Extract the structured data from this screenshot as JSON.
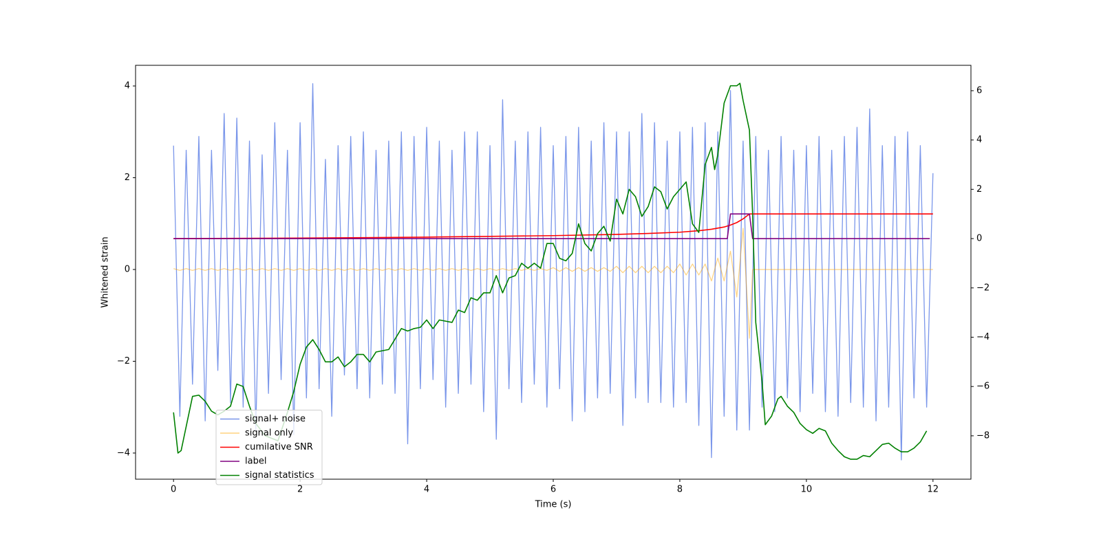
{
  "chart_data": {
    "type": "line",
    "xlabel": "Time (s)",
    "ylabel": "Whitened strain",
    "xlim": [
      -0.6,
      12.6
    ],
    "xticks": [
      0,
      2,
      4,
      6,
      8,
      10,
      12
    ],
    "ylim": [
      -4.57,
      4.45
    ],
    "yticks": [
      {
        "value": -4,
        "label": "−4"
      },
      {
        "value": -2,
        "label": "−2"
      },
      0,
      2,
      4
    ],
    "y2lim": [
      -9.76,
      7.03
    ],
    "y2ticks": [
      {
        "value": -8,
        "label": "−8"
      },
      {
        "value": -6,
        "label": "−6"
      },
      {
        "value": -4,
        "label": "−4"
      },
      {
        "value": -2,
        "label": "−2"
      },
      0,
      2,
      4,
      6
    ],
    "legend_loc": "lower left",
    "series": [
      {
        "name": "signal+ noise",
        "color": "#4169e1",
        "x": [
          0,
          0.1,
          0.2,
          0.3,
          0.4,
          0.5,
          0.6,
          0.7,
          0.8,
          0.9,
          1,
          1.1,
          1.2,
          1.3,
          1.4,
          1.5,
          1.6,
          1.7,
          1.8,
          1.9,
          2,
          2.1,
          2.2,
          2.3,
          2.4,
          2.5,
          2.6,
          2.7,
          2.8,
          2.9,
          3,
          3.1,
          3.2,
          3.3,
          3.4,
          3.5,
          3.6,
          3.7,
          3.8,
          3.9,
          4,
          4.1,
          4.2,
          4.3,
          4.4,
          4.5,
          4.6,
          4.7,
          4.8,
          4.9,
          5,
          5.1,
          5.2,
          5.3,
          5.4,
          5.5,
          5.6,
          5.7,
          5.8,
          5.9,
          6,
          6.1,
          6.2,
          6.3,
          6.4,
          6.5,
          6.6,
          6.7,
          6.8,
          6.9,
          7,
          7.1,
          7.2,
          7.3,
          7.4,
          7.5,
          7.6,
          7.7,
          7.8,
          7.9,
          8,
          8.1,
          8.2,
          8.3,
          8.4,
          8.5,
          8.6,
          8.7,
          8.8,
          8.9,
          9,
          9.1,
          9.2,
          9.3,
          9.4,
          9.5,
          9.6,
          9.7,
          9.8,
          9.9,
          10,
          10.1,
          10.2,
          10.3,
          10.4,
          10.5,
          10.6,
          10.7,
          10.8,
          10.9,
          11,
          11.1,
          11.2,
          11.3,
          11.4,
          11.5,
          11.6,
          11.7,
          11.8,
          11.9,
          12
        ],
        "values": [
          2.7,
          -3.2,
          2.6,
          -2.5,
          2.9,
          -3.3,
          2.6,
          -2.2,
          3.4,
          -2.9,
          3.3,
          -3.0,
          2.8,
          -3.5,
          2.5,
          -2.7,
          3.2,
          -2.4,
          2.6,
          -3.6,
          3.2,
          -2.8,
          4.05,
          -2.6,
          2.4,
          -3.2,
          2.7,
          -2.3,
          2.9,
          -2.6,
          3.0,
          -2.8,
          2.6,
          -2.5,
          2.8,
          -2.7,
          3.0,
          -3.8,
          2.9,
          -2.6,
          3.1,
          -2.4,
          2.8,
          -3.0,
          2.6,
          -2.7,
          3.0,
          -2.5,
          3.0,
          -3.1,
          2.7,
          -3.7,
          3.7,
          -2.6,
          2.8,
          -2.9,
          3.0,
          -2.5,
          3.1,
          -3.0,
          2.7,
          -2.6,
          2.9,
          -3.3,
          3.1,
          -3.1,
          2.8,
          -2.8,
          3.2,
          -2.7,
          3.0,
          -3.4,
          3.0,
          -2.8,
          3.4,
          -2.9,
          3.2,
          -2.9,
          2.8,
          -3.0,
          3.0,
          -2.9,
          3.1,
          -3.4,
          3.2,
          -4.1,
          3.0,
          -3.2,
          3.9,
          -3.5,
          2.8,
          -3.5,
          2.9,
          -3.0,
          2.6,
          -3.1,
          2.9,
          -2.8,
          2.6,
          -3.1,
          2.7,
          -2.7,
          2.9,
          -3.1,
          2.6,
          -3.2,
          2.9,
          -2.9,
          3.1,
          -3.0,
          3.5,
          -3.3,
          2.7,
          -3.0,
          2.9,
          -4.15,
          3.0,
          -2.8,
          2.7,
          -3.0,
          2.1
        ]
      },
      {
        "name": "signal only",
        "color": "#ffa500",
        "x": [
          0,
          0.1,
          0.2,
          0.3,
          0.4,
          0.5,
          0.6,
          0.7,
          0.8,
          0.9,
          1,
          1.1,
          1.2,
          1.3,
          1.4,
          1.5,
          1.6,
          1.7,
          1.8,
          1.9,
          2,
          2.1,
          2.2,
          2.3,
          2.4,
          2.5,
          2.6,
          2.7,
          2.8,
          2.9,
          3,
          3.1,
          3.2,
          3.3,
          3.4,
          3.5,
          3.6,
          3.7,
          3.8,
          3.9,
          4,
          4.1,
          4.2,
          4.3,
          4.4,
          4.5,
          4.6,
          4.7,
          4.8,
          4.9,
          5,
          5.1,
          5.2,
          5.3,
          5.4,
          5.5,
          5.6,
          5.7,
          5.8,
          5.9,
          6,
          6.1,
          6.2,
          6.3,
          6.4,
          6.5,
          6.6,
          6.7,
          6.8,
          6.9,
          7,
          7.1,
          7.2,
          7.3,
          7.4,
          7.5,
          7.6,
          7.7,
          7.8,
          7.9,
          8,
          8.1,
          8.2,
          8.3,
          8.4,
          8.5,
          8.6,
          8.7,
          8.8,
          8.9,
          9,
          9.1,
          9.15,
          12
        ],
        "values": [
          0.02,
          -0.02,
          0.02,
          -0.02,
          0.02,
          -0.02,
          0.02,
          -0.02,
          0.02,
          -0.02,
          0.02,
          -0.02,
          0.02,
          -0.02,
          0.02,
          -0.02,
          0.02,
          -0.02,
          0.02,
          -0.02,
          0.02,
          -0.02,
          0.02,
          -0.02,
          0.02,
          -0.02,
          0.02,
          -0.02,
          0.02,
          -0.02,
          0.02,
          -0.02,
          0.02,
          -0.02,
          0.02,
          -0.02,
          0.02,
          -0.02,
          0.02,
          -0.02,
          0.02,
          -0.02,
          0.02,
          -0.02,
          0.02,
          -0.02,
          0.02,
          -0.02,
          0.02,
          -0.02,
          0.02,
          -0.02,
          0.02,
          -0.02,
          0.02,
          -0.02,
          0.02,
          -0.02,
          0.02,
          -0.02,
          0.04,
          -0.04,
          0.04,
          -0.04,
          0.04,
          -0.04,
          0.04,
          -0.04,
          0.04,
          -0.04,
          0.07,
          -0.07,
          0.07,
          -0.07,
          0.07,
          -0.07,
          0.07,
          -0.07,
          0.07,
          -0.07,
          0.12,
          -0.12,
          0.12,
          -0.12,
          0.12,
          -0.25,
          0.25,
          -0.25,
          0.4,
          -0.6,
          0.9,
          -1.5,
          0,
          0
        ]
      },
      {
        "name": "cumilative SNR",
        "color": "#ff0000",
        "axis": "y2",
        "x": [
          0,
          1,
          2,
          3,
          4,
          5,
          6,
          7,
          7.5,
          8,
          8.3,
          8.5,
          8.7,
          8.8,
          8.9,
          9,
          9.05,
          9.1,
          9.15,
          12
        ],
        "values": [
          0,
          0.01,
          0.02,
          0.04,
          0.06,
          0.09,
          0.12,
          0.17,
          0.21,
          0.26,
          0.32,
          0.38,
          0.47,
          0.55,
          0.65,
          0.8,
          0.9,
          1,
          1,
          1
        ]
      },
      {
        "name": "label",
        "color": "#800080",
        "axis": "y2",
        "x": [
          0,
          8.75,
          8.8,
          9.1,
          9.15,
          11.95
        ],
        "values": [
          0,
          0,
          1,
          1,
          0,
          0
        ]
      },
      {
        "name": "signal statistics",
        "color": "#008000",
        "axis": "y2",
        "x": [
          0,
          0.07,
          0.12,
          0.3,
          0.4,
          0.5,
          0.6,
          0.7,
          0.8,
          0.9,
          1,
          1.1,
          1.2,
          1.3,
          1.45,
          1.65,
          1.8,
          1.9,
          2,
          2.1,
          2.2,
          2.3,
          2.4,
          2.5,
          2.6,
          2.7,
          2.8,
          2.9,
          3,
          3.1,
          3.2,
          3.4,
          3.6,
          3.7,
          3.8,
          3.9,
          4,
          4.1,
          4.2,
          4.4,
          4.5,
          4.6,
          4.7,
          4.8,
          4.9,
          5,
          5.1,
          5.2,
          5.3,
          5.4,
          5.5,
          5.6,
          5.7,
          5.8,
          5.9,
          6,
          6.1,
          6.2,
          6.3,
          6.4,
          6.5,
          6.6,
          6.7,
          6.8,
          6.9,
          7,
          7.1,
          7.2,
          7.3,
          7.4,
          7.5,
          7.6,
          7.7,
          7.8,
          7.9,
          8,
          8.1,
          8.2,
          8.3,
          8.4,
          8.5,
          8.55,
          8.6,
          8.7,
          8.8,
          8.9,
          8.95,
          9,
          9.1,
          9.15,
          9.2,
          9.3,
          9.35,
          9.45,
          9.55,
          9.6,
          9.7,
          9.8,
          9.9,
          10,
          10.1,
          10.2,
          10.3,
          10.4,
          10.5,
          10.6,
          10.7,
          10.8,
          10.9,
          11,
          11.1,
          11.2,
          11.3,
          11.4,
          11.5,
          11.6,
          11.7,
          11.8,
          11.9
        ],
        "values": [
          -7.05,
          -8.7,
          -8.6,
          -6.4,
          -6.35,
          -6.6,
          -7.0,
          -7.15,
          -7.0,
          -6.8,
          -5.9,
          -6.0,
          -6.8,
          -7.5,
          -8.0,
          -8.2,
          -7.05,
          -6.2,
          -5.1,
          -4.4,
          -4.1,
          -4.5,
          -5.0,
          -5.0,
          -4.8,
          -5.2,
          -5.0,
          -4.7,
          -4.7,
          -5.0,
          -4.6,
          -4.5,
          -3.65,
          -3.75,
          -3.65,
          -3.6,
          -3.3,
          -3.65,
          -3.3,
          -3.4,
          -2.9,
          -3.0,
          -2.4,
          -2.5,
          -2.2,
          -2.2,
          -1.5,
          -2.2,
          -1.6,
          -1.5,
          -1.0,
          -1.2,
          -1.0,
          -1.2,
          -0.2,
          -0.2,
          -0.8,
          -0.9,
          -0.6,
          0.6,
          -0.2,
          -0.5,
          0.2,
          0.5,
          -0.1,
          1.6,
          1.0,
          2.0,
          1.7,
          0.9,
          1.3,
          2.1,
          1.9,
          1.2,
          1.7,
          2.0,
          2.3,
          0.6,
          0.25,
          3.0,
          3.7,
          2.8,
          3.4,
          5.5,
          6.2,
          6.2,
          6.3,
          5.6,
          4.4,
          1.0,
          -3.4,
          -5.8,
          -7.55,
          -7.2,
          -6.5,
          -6.4,
          -6.8,
          -7.05,
          -7.5,
          -7.75,
          -7.9,
          -7.7,
          -7.8,
          -8.3,
          -8.6,
          -8.85,
          -8.95,
          -8.95,
          -8.8,
          -8.85,
          -8.6,
          -8.35,
          -8.3,
          -8.5,
          -8.65,
          -8.65,
          -8.5,
          -8.25,
          -7.8
        ]
      }
    ]
  }
}
